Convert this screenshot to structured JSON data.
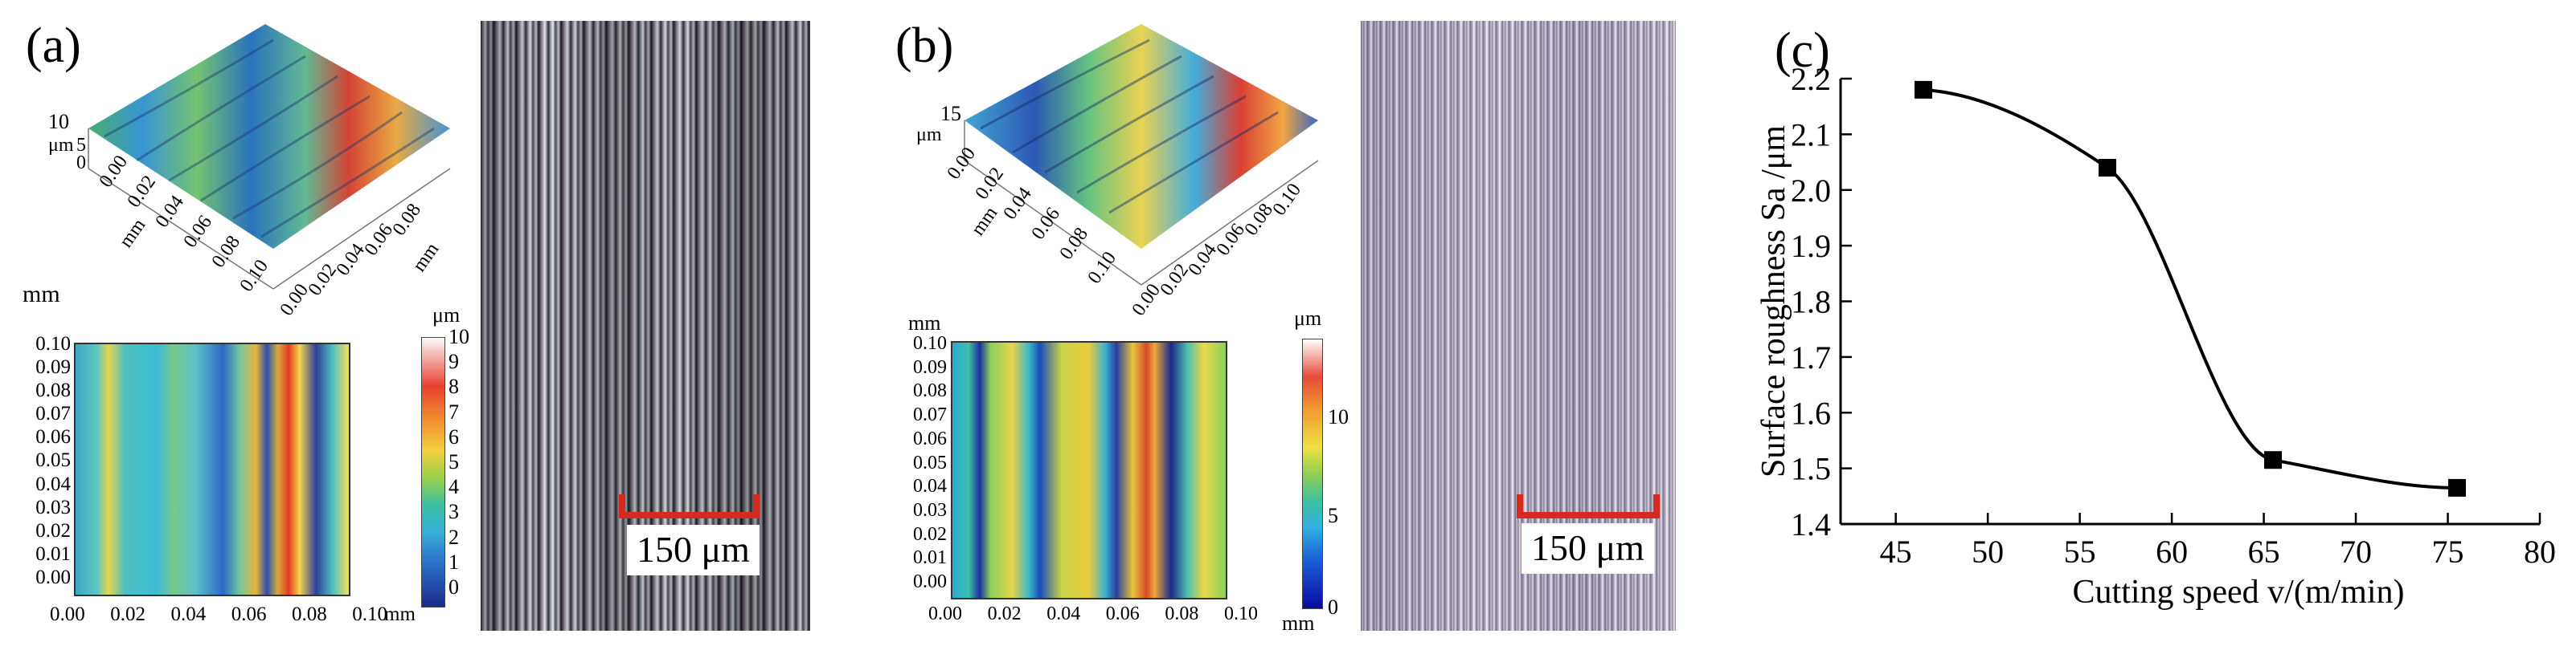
{
  "panels": {
    "a": {
      "label": "(a)",
      "z_label": "μm",
      "z_ticks": [
        "10",
        "5",
        "0"
      ],
      "surface_x_ticks": [
        "0.00",
        "0.02",
        "0.04",
        "0.06",
        "0.08",
        "0.10"
      ],
      "surface_y_ticks": [
        "0.00",
        "0.02",
        "0.04",
        "0.06",
        "0.08"
      ],
      "mm_label": "mm",
      "contour_axis_label": "mm",
      "contour_y_ticks": [
        "0.10",
        "0.09",
        "0.08",
        "0.07",
        "0.06",
        "0.05",
        "0.04",
        "0.03",
        "0.02",
        "0.01",
        "0.00"
      ],
      "contour_x_ticks": [
        "0.00",
        "0.02",
        "0.04",
        "0.06",
        "0.08",
        "0.10"
      ],
      "contour_x_unit": "mm",
      "colorbar_unit": "μm",
      "colorbar_ticks": [
        "10",
        "9",
        "8",
        "7",
        "6",
        "5",
        "4",
        "3",
        "2",
        "1",
        "0"
      ],
      "scale_label": "150 μm"
    },
    "b": {
      "label": "(b)",
      "z_label": "μm",
      "z_ticks": [
        "15"
      ],
      "surface_x_ticks": [
        "0.00",
        "0.02",
        "0.04",
        "0.06",
        "0.08",
        "0.10"
      ],
      "surface_y_ticks": [
        "0.00",
        "0.02",
        "0.04",
        "0.06",
        "0.08",
        "0.10"
      ],
      "mm_label": "mm",
      "contour_axis_label": "mm",
      "contour_y_ticks": [
        "0.10",
        "0.09",
        "0.08",
        "0.07",
        "0.06",
        "0.05",
        "0.04",
        "0.03",
        "0.02",
        "0.01",
        "0.00"
      ],
      "contour_x_ticks": [
        "0.00",
        "0.02",
        "0.04",
        "0.06",
        "0.08",
        "0.10"
      ],
      "contour_x_unit": "mm",
      "colorbar_unit": "μm",
      "colorbar_ticks": [
        "10",
        "5",
        "0"
      ],
      "scale_label": "150 μm"
    },
    "c": {
      "label": "(c)"
    }
  },
  "chart_data": {
    "type": "line",
    "title": "",
    "xlabel": "Cutting speed v/(m/min)",
    "ylabel": "Surface roughness Sa /μm",
    "xlim": [
      42,
      80
    ],
    "ylim": [
      1.4,
      2.2
    ],
    "x_ticks": [
      45,
      50,
      55,
      60,
      65,
      70,
      75,
      80
    ],
    "y_ticks": [
      "1.4",
      "1.5",
      "1.6",
      "1.7",
      "1.8",
      "1.9",
      "2.0",
      "2.1",
      "2.2"
    ],
    "series": [
      {
        "name": "Sa",
        "marker": "square",
        "x": [
          46.5,
          56.5,
          65.5,
          75.5
        ],
        "y": [
          2.18,
          2.04,
          1.515,
          1.465
        ]
      }
    ],
    "colors": {
      "line": "#000000",
      "marker": "#000000"
    }
  }
}
